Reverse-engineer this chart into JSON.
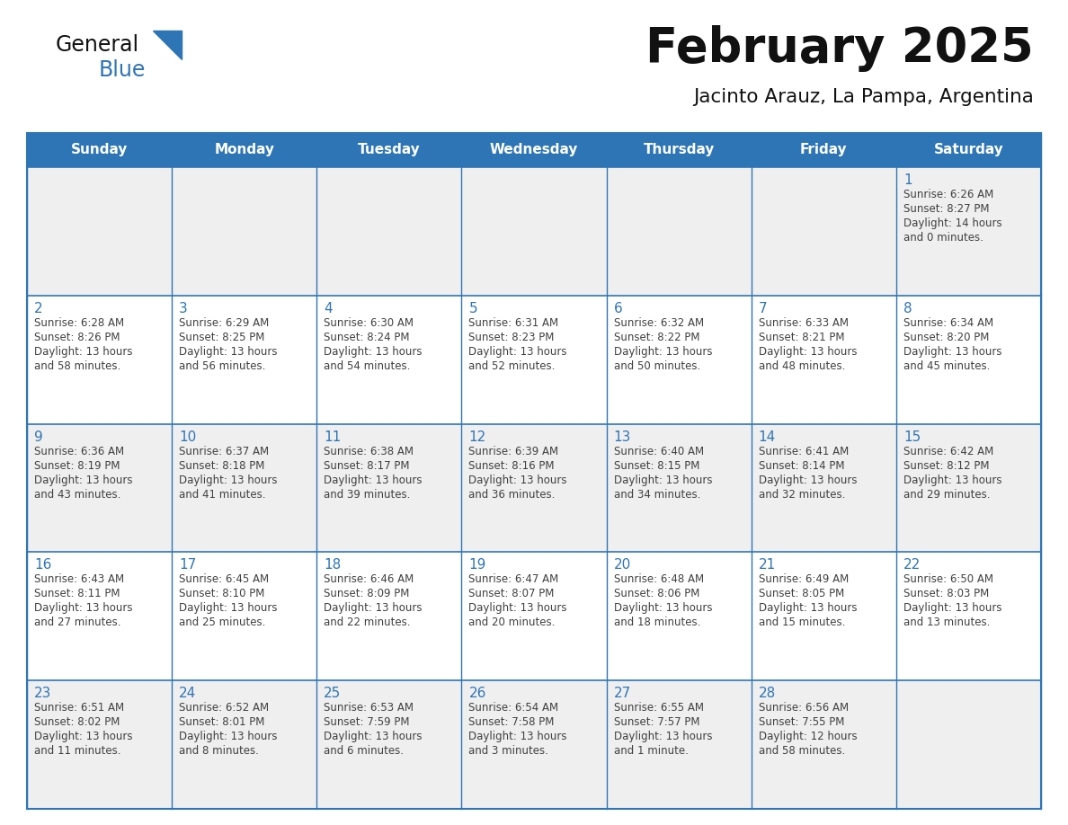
{
  "title": "February 2025",
  "subtitle": "Jacinto Arauz, La Pampa, Argentina",
  "header_bg": "#2E75B6",
  "header_text_color": "#FFFFFF",
  "row_bg_alt": "#E9E9E9",
  "row_bg_white": "#FFFFFF",
  "border_color": "#2E75B6",
  "day_num_color": "#2E75B6",
  "text_color": "#404040",
  "days_of_week": [
    "Sunday",
    "Monday",
    "Tuesday",
    "Wednesday",
    "Thursday",
    "Friday",
    "Saturday"
  ],
  "calendar_data": [
    [
      null,
      null,
      null,
      null,
      null,
      null,
      {
        "day": 1,
        "sunrise": "6:26 AM",
        "sunset": "8:27 PM",
        "daylight_line1": "Daylight: 14 hours",
        "daylight_line2": "and 0 minutes."
      }
    ],
    [
      {
        "day": 2,
        "sunrise": "6:28 AM",
        "sunset": "8:26 PM",
        "daylight_line1": "Daylight: 13 hours",
        "daylight_line2": "and 58 minutes."
      },
      {
        "day": 3,
        "sunrise": "6:29 AM",
        "sunset": "8:25 PM",
        "daylight_line1": "Daylight: 13 hours",
        "daylight_line2": "and 56 minutes."
      },
      {
        "day": 4,
        "sunrise": "6:30 AM",
        "sunset": "8:24 PM",
        "daylight_line1": "Daylight: 13 hours",
        "daylight_line2": "and 54 minutes."
      },
      {
        "day": 5,
        "sunrise": "6:31 AM",
        "sunset": "8:23 PM",
        "daylight_line1": "Daylight: 13 hours",
        "daylight_line2": "and 52 minutes."
      },
      {
        "day": 6,
        "sunrise": "6:32 AM",
        "sunset": "8:22 PM",
        "daylight_line1": "Daylight: 13 hours",
        "daylight_line2": "and 50 minutes."
      },
      {
        "day": 7,
        "sunrise": "6:33 AM",
        "sunset": "8:21 PM",
        "daylight_line1": "Daylight: 13 hours",
        "daylight_line2": "and 48 minutes."
      },
      {
        "day": 8,
        "sunrise": "6:34 AM",
        "sunset": "8:20 PM",
        "daylight_line1": "Daylight: 13 hours",
        "daylight_line2": "and 45 minutes."
      }
    ],
    [
      {
        "day": 9,
        "sunrise": "6:36 AM",
        "sunset": "8:19 PM",
        "daylight_line1": "Daylight: 13 hours",
        "daylight_line2": "and 43 minutes."
      },
      {
        "day": 10,
        "sunrise": "6:37 AM",
        "sunset": "8:18 PM",
        "daylight_line1": "Daylight: 13 hours",
        "daylight_line2": "and 41 minutes."
      },
      {
        "day": 11,
        "sunrise": "6:38 AM",
        "sunset": "8:17 PM",
        "daylight_line1": "Daylight: 13 hours",
        "daylight_line2": "and 39 minutes."
      },
      {
        "day": 12,
        "sunrise": "6:39 AM",
        "sunset": "8:16 PM",
        "daylight_line1": "Daylight: 13 hours",
        "daylight_line2": "and 36 minutes."
      },
      {
        "day": 13,
        "sunrise": "6:40 AM",
        "sunset": "8:15 PM",
        "daylight_line1": "Daylight: 13 hours",
        "daylight_line2": "and 34 minutes."
      },
      {
        "day": 14,
        "sunrise": "6:41 AM",
        "sunset": "8:14 PM",
        "daylight_line1": "Daylight: 13 hours",
        "daylight_line2": "and 32 minutes."
      },
      {
        "day": 15,
        "sunrise": "6:42 AM",
        "sunset": "8:12 PM",
        "daylight_line1": "Daylight: 13 hours",
        "daylight_line2": "and 29 minutes."
      }
    ],
    [
      {
        "day": 16,
        "sunrise": "6:43 AM",
        "sunset": "8:11 PM",
        "daylight_line1": "Daylight: 13 hours",
        "daylight_line2": "and 27 minutes."
      },
      {
        "day": 17,
        "sunrise": "6:45 AM",
        "sunset": "8:10 PM",
        "daylight_line1": "Daylight: 13 hours",
        "daylight_line2": "and 25 minutes."
      },
      {
        "day": 18,
        "sunrise": "6:46 AM",
        "sunset": "8:09 PM",
        "daylight_line1": "Daylight: 13 hours",
        "daylight_line2": "and 22 minutes."
      },
      {
        "day": 19,
        "sunrise": "6:47 AM",
        "sunset": "8:07 PM",
        "daylight_line1": "Daylight: 13 hours",
        "daylight_line2": "and 20 minutes."
      },
      {
        "day": 20,
        "sunrise": "6:48 AM",
        "sunset": "8:06 PM",
        "daylight_line1": "Daylight: 13 hours",
        "daylight_line2": "and 18 minutes."
      },
      {
        "day": 21,
        "sunrise": "6:49 AM",
        "sunset": "8:05 PM",
        "daylight_line1": "Daylight: 13 hours",
        "daylight_line2": "and 15 minutes."
      },
      {
        "day": 22,
        "sunrise": "6:50 AM",
        "sunset": "8:03 PM",
        "daylight_line1": "Daylight: 13 hours",
        "daylight_line2": "and 13 minutes."
      }
    ],
    [
      {
        "day": 23,
        "sunrise": "6:51 AM",
        "sunset": "8:02 PM",
        "daylight_line1": "Daylight: 13 hours",
        "daylight_line2": "and 11 minutes."
      },
      {
        "day": 24,
        "sunrise": "6:52 AM",
        "sunset": "8:01 PM",
        "daylight_line1": "Daylight: 13 hours",
        "daylight_line2": "and 8 minutes."
      },
      {
        "day": 25,
        "sunrise": "6:53 AM",
        "sunset": "7:59 PM",
        "daylight_line1": "Daylight: 13 hours",
        "daylight_line2": "and 6 minutes."
      },
      {
        "day": 26,
        "sunrise": "6:54 AM",
        "sunset": "7:58 PM",
        "daylight_line1": "Daylight: 13 hours",
        "daylight_line2": "and 3 minutes."
      },
      {
        "day": 27,
        "sunrise": "6:55 AM",
        "sunset": "7:57 PM",
        "daylight_line1": "Daylight: 13 hours",
        "daylight_line2": "and 1 minute."
      },
      {
        "day": 28,
        "sunrise": "6:56 AM",
        "sunset": "7:55 PM",
        "daylight_line1": "Daylight: 12 hours",
        "daylight_line2": "and 58 minutes."
      },
      null
    ]
  ],
  "logo_general_color": "#111111",
  "logo_blue_color": "#2E75B6",
  "row_backgrounds": [
    "#EFEFEF",
    "#FFFFFF",
    "#EFEFEF",
    "#FFFFFF",
    "#EFEFEF"
  ]
}
